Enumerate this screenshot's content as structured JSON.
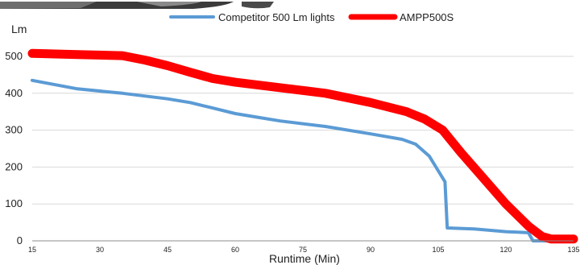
{
  "chart_data": {
    "type": "line",
    "ylabel": "Lm",
    "xlabel": "Runtime (Min)",
    "xlim": [
      15,
      135
    ],
    "ylim": [
      0,
      500
    ],
    "x_ticks": [
      15,
      30,
      45,
      60,
      75,
      90,
      105,
      120,
      135
    ],
    "y_ticks": [
      0,
      100,
      200,
      300,
      400,
      500
    ],
    "grid": "horizontal",
    "legend_position": "top",
    "series": [
      {
        "name": "Competitor 500 Lm lights",
        "color": "#5b9bd5",
        "points": [
          [
            15,
            435
          ],
          [
            25,
            412
          ],
          [
            35,
            400
          ],
          [
            45,
            385
          ],
          [
            50,
            375
          ],
          [
            55,
            360
          ],
          [
            60,
            345
          ],
          [
            65,
            335
          ],
          [
            70,
            325
          ],
          [
            80,
            310
          ],
          [
            90,
            290
          ],
          [
            97,
            275
          ],
          [
            100,
            262
          ],
          [
            103,
            230
          ],
          [
            105,
            190
          ],
          [
            106.5,
            160
          ],
          [
            107,
            35
          ],
          [
            113,
            32
          ],
          [
            120,
            25
          ],
          [
            125,
            22
          ],
          [
            126,
            0
          ],
          [
            135,
            0
          ]
        ]
      },
      {
        "name": "AMPP500S",
        "color": "#ff0000",
        "points": [
          [
            15,
            508
          ],
          [
            25,
            505
          ],
          [
            35,
            502
          ],
          [
            40,
            490
          ],
          [
            45,
            475
          ],
          [
            50,
            457
          ],
          [
            55,
            440
          ],
          [
            60,
            430
          ],
          [
            70,
            415
          ],
          [
            80,
            400
          ],
          [
            90,
            375
          ],
          [
            98,
            350
          ],
          [
            102,
            330
          ],
          [
            106,
            300
          ],
          [
            110,
            240
          ],
          [
            115,
            170
          ],
          [
            120,
            100
          ],
          [
            125,
            40
          ],
          [
            128,
            12
          ],
          [
            130,
            5
          ],
          [
            135,
            5
          ]
        ]
      }
    ]
  },
  "colors": {
    "grid": "#d9d9d9",
    "axis": "#8c8c8c"
  }
}
